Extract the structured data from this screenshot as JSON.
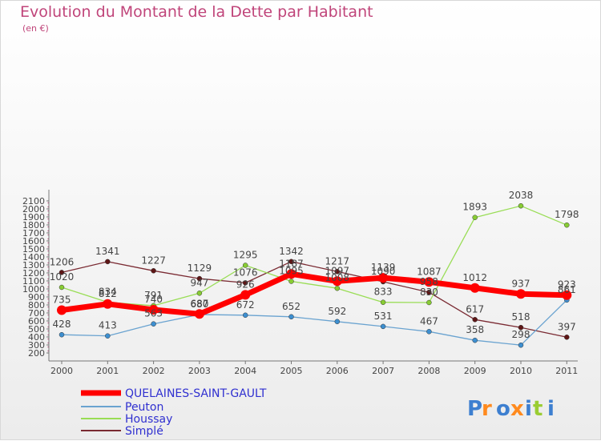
{
  "title": "Evolution du Montant de la Dette par Habitant",
  "subtitle": "(en €)",
  "logo_text": "Proxiti",
  "colors": {
    "series1": "#ff0000",
    "series2": "#6aa3d0",
    "series3": "#99dd55",
    "series4": "#7a2a32",
    "marker1": "#ff0000",
    "marker2": "#3d8fd0",
    "marker3": "#88cc33",
    "marker4": "#5e1616",
    "title": "#c0457a",
    "legend_text": "#3030d0"
  },
  "chart_data": {
    "type": "line",
    "title": "Evolution du Montant de la Dette par Habitant",
    "ylabel": "(en €)",
    "x": [
      "2000",
      "2001",
      "2002",
      "2003",
      "2004",
      "2005",
      "2006",
      "2007",
      "2008",
      "2009",
      "2010",
      "2011"
    ],
    "y_ticks": [
      200,
      300,
      400,
      500,
      600,
      700,
      800,
      900,
      1000,
      1100,
      1200,
      1300,
      1400,
      1500,
      1600,
      1700,
      1800,
      1900,
      2000,
      2100
    ],
    "ylim": [
      200,
      2100
    ],
    "grid": false,
    "legend_position": "bottom-left",
    "series": [
      {
        "name": "QUELAINES-SAINT-GAULT",
        "values": [
          735,
          812,
          740,
          687,
          926,
          1187,
          1097,
          1139,
          1087,
          1012,
          937,
          923
        ],
        "labels": [
          "735",
          "812",
          "740",
          "687",
          "926",
          "1187",
          "1097",
          "1139",
          "1087",
          "1012",
          "937",
          "923"
        ]
      },
      {
        "name": "Peuton",
        "values": [
          428,
          413,
          563,
          680,
          672,
          652,
          592,
          531,
          467,
          358,
          298,
          861
        ],
        "labels": [
          "428",
          "413",
          "563",
          "680",
          "672",
          "652",
          "592",
          "531",
          "467",
          "358",
          "298",
          "861"
        ]
      },
      {
        "name": "Houssay",
        "values": [
          1020,
          834,
          791,
          947,
          1295,
          1095,
          1008,
          833,
          830,
          1893,
          2038,
          1798
        ],
        "labels": [
          "1020",
          "834",
          "791",
          "947",
          "1295",
          "1095",
          "1008",
          "833",
          "830",
          "1893",
          "2038",
          "1798"
        ]
      },
      {
        "name": "Simplé",
        "values": [
          1206,
          1341,
          1227,
          1129,
          1076,
          1342,
          1217,
          1090,
          958,
          617,
          518,
          397
        ],
        "labels": [
          "1206",
          "1341",
          "1227",
          "1129",
          "1076",
          "1342",
          "1217",
          "1090",
          "958",
          "617",
          "518",
          "397"
        ]
      }
    ]
  }
}
